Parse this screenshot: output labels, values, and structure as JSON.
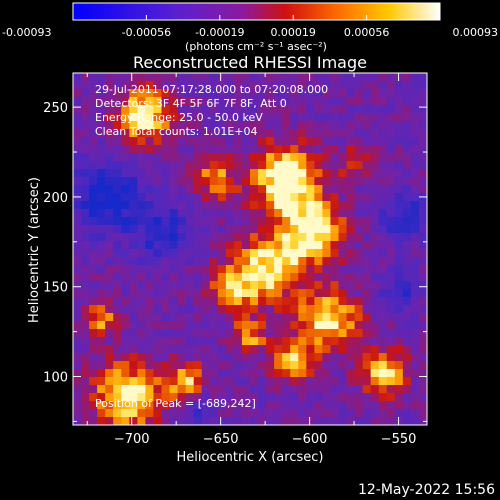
{
  "colorbar": {
    "ticks": [
      "-0.00093",
      "-0.00056",
      "-0.00019",
      "0.00019",
      "0.00056",
      "0.00093"
    ],
    "unit_label": "(photons cm⁻² s⁻¹ asec⁻²)"
  },
  "annotations": {
    "line1": "29-Jul-2011 07:17:28.000 to 07:20:08.000",
    "line2": "Detectors: 3F 4F 5F 6F 7F 8F, Att 0",
    "line3": "Energy Range: 25.0 - 50.0 keV",
    "line4": "Clean      Total counts: 1.01E+04",
    "peak": "Position of Peak = [-689,242]"
  },
  "footer": {
    "timestamp": "12-May-2022 15:56"
  },
  "chart_data": {
    "type": "heatmap",
    "title": "Reconstructed RHESSI Image",
    "xlabel": "Heliocentric X (arcsec)",
    "ylabel": "Heliocentric Y (arcsec)",
    "xlim": [
      -733,
      -534
    ],
    "ylim": [
      73,
      269
    ],
    "xticks": [
      -700,
      -650,
      -600,
      -550
    ],
    "yticks": [
      100,
      150,
      200,
      250
    ],
    "xtick_labels": [
      "−700",
      "−650",
      "−600",
      "−550"
    ],
    "ytick_labels": [
      "100",
      "150",
      "200",
      "250"
    ],
    "colormap": "blue-purple-red-orange-yellow-white",
    "value_range": [
      -0.00093,
      0.00093
    ],
    "peak_position": [
      -689,
      242
    ],
    "colorscale_colors": [
      "#0000ff",
      "#7a1fc8",
      "#cc1010",
      "#ff7a00",
      "#ffd200",
      "#ffffff"
    ]
  }
}
